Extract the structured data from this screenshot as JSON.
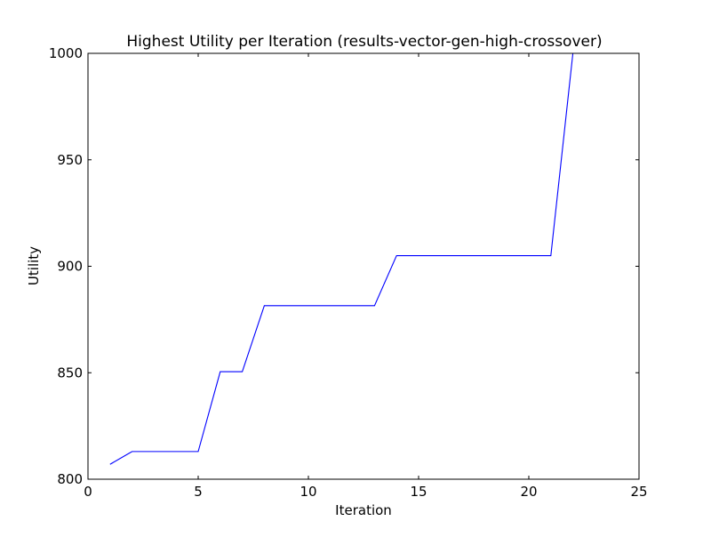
{
  "chart_data": {
    "type": "line",
    "title": "Highest Utility per Iteration (results-vector-gen-high-crossover)",
    "xlabel": "Iteration",
    "ylabel": "Utility",
    "xlim": [
      0,
      25
    ],
    "ylim": [
      800,
      1000
    ],
    "xticks": [
      0,
      5,
      10,
      15,
      20,
      25
    ],
    "yticks": [
      800,
      850,
      900,
      950,
      1000
    ],
    "grid": false,
    "line_color": "#0000ff",
    "series": [
      {
        "x": [
          1,
          2,
          3,
          4,
          5,
          6,
          7,
          8,
          9,
          10,
          11,
          12,
          13,
          14,
          15,
          16,
          17,
          18,
          19,
          20,
          21,
          22,
          23,
          24,
          25
        ],
        "y": [
          807,
          813,
          813,
          813,
          813,
          850.5,
          850.5,
          881.5,
          881.5,
          881.5,
          881.5,
          881.5,
          881.5,
          905,
          905,
          905,
          905,
          905,
          905,
          905,
          905,
          1000,
          1000,
          1000,
          1000
        ]
      }
    ]
  }
}
